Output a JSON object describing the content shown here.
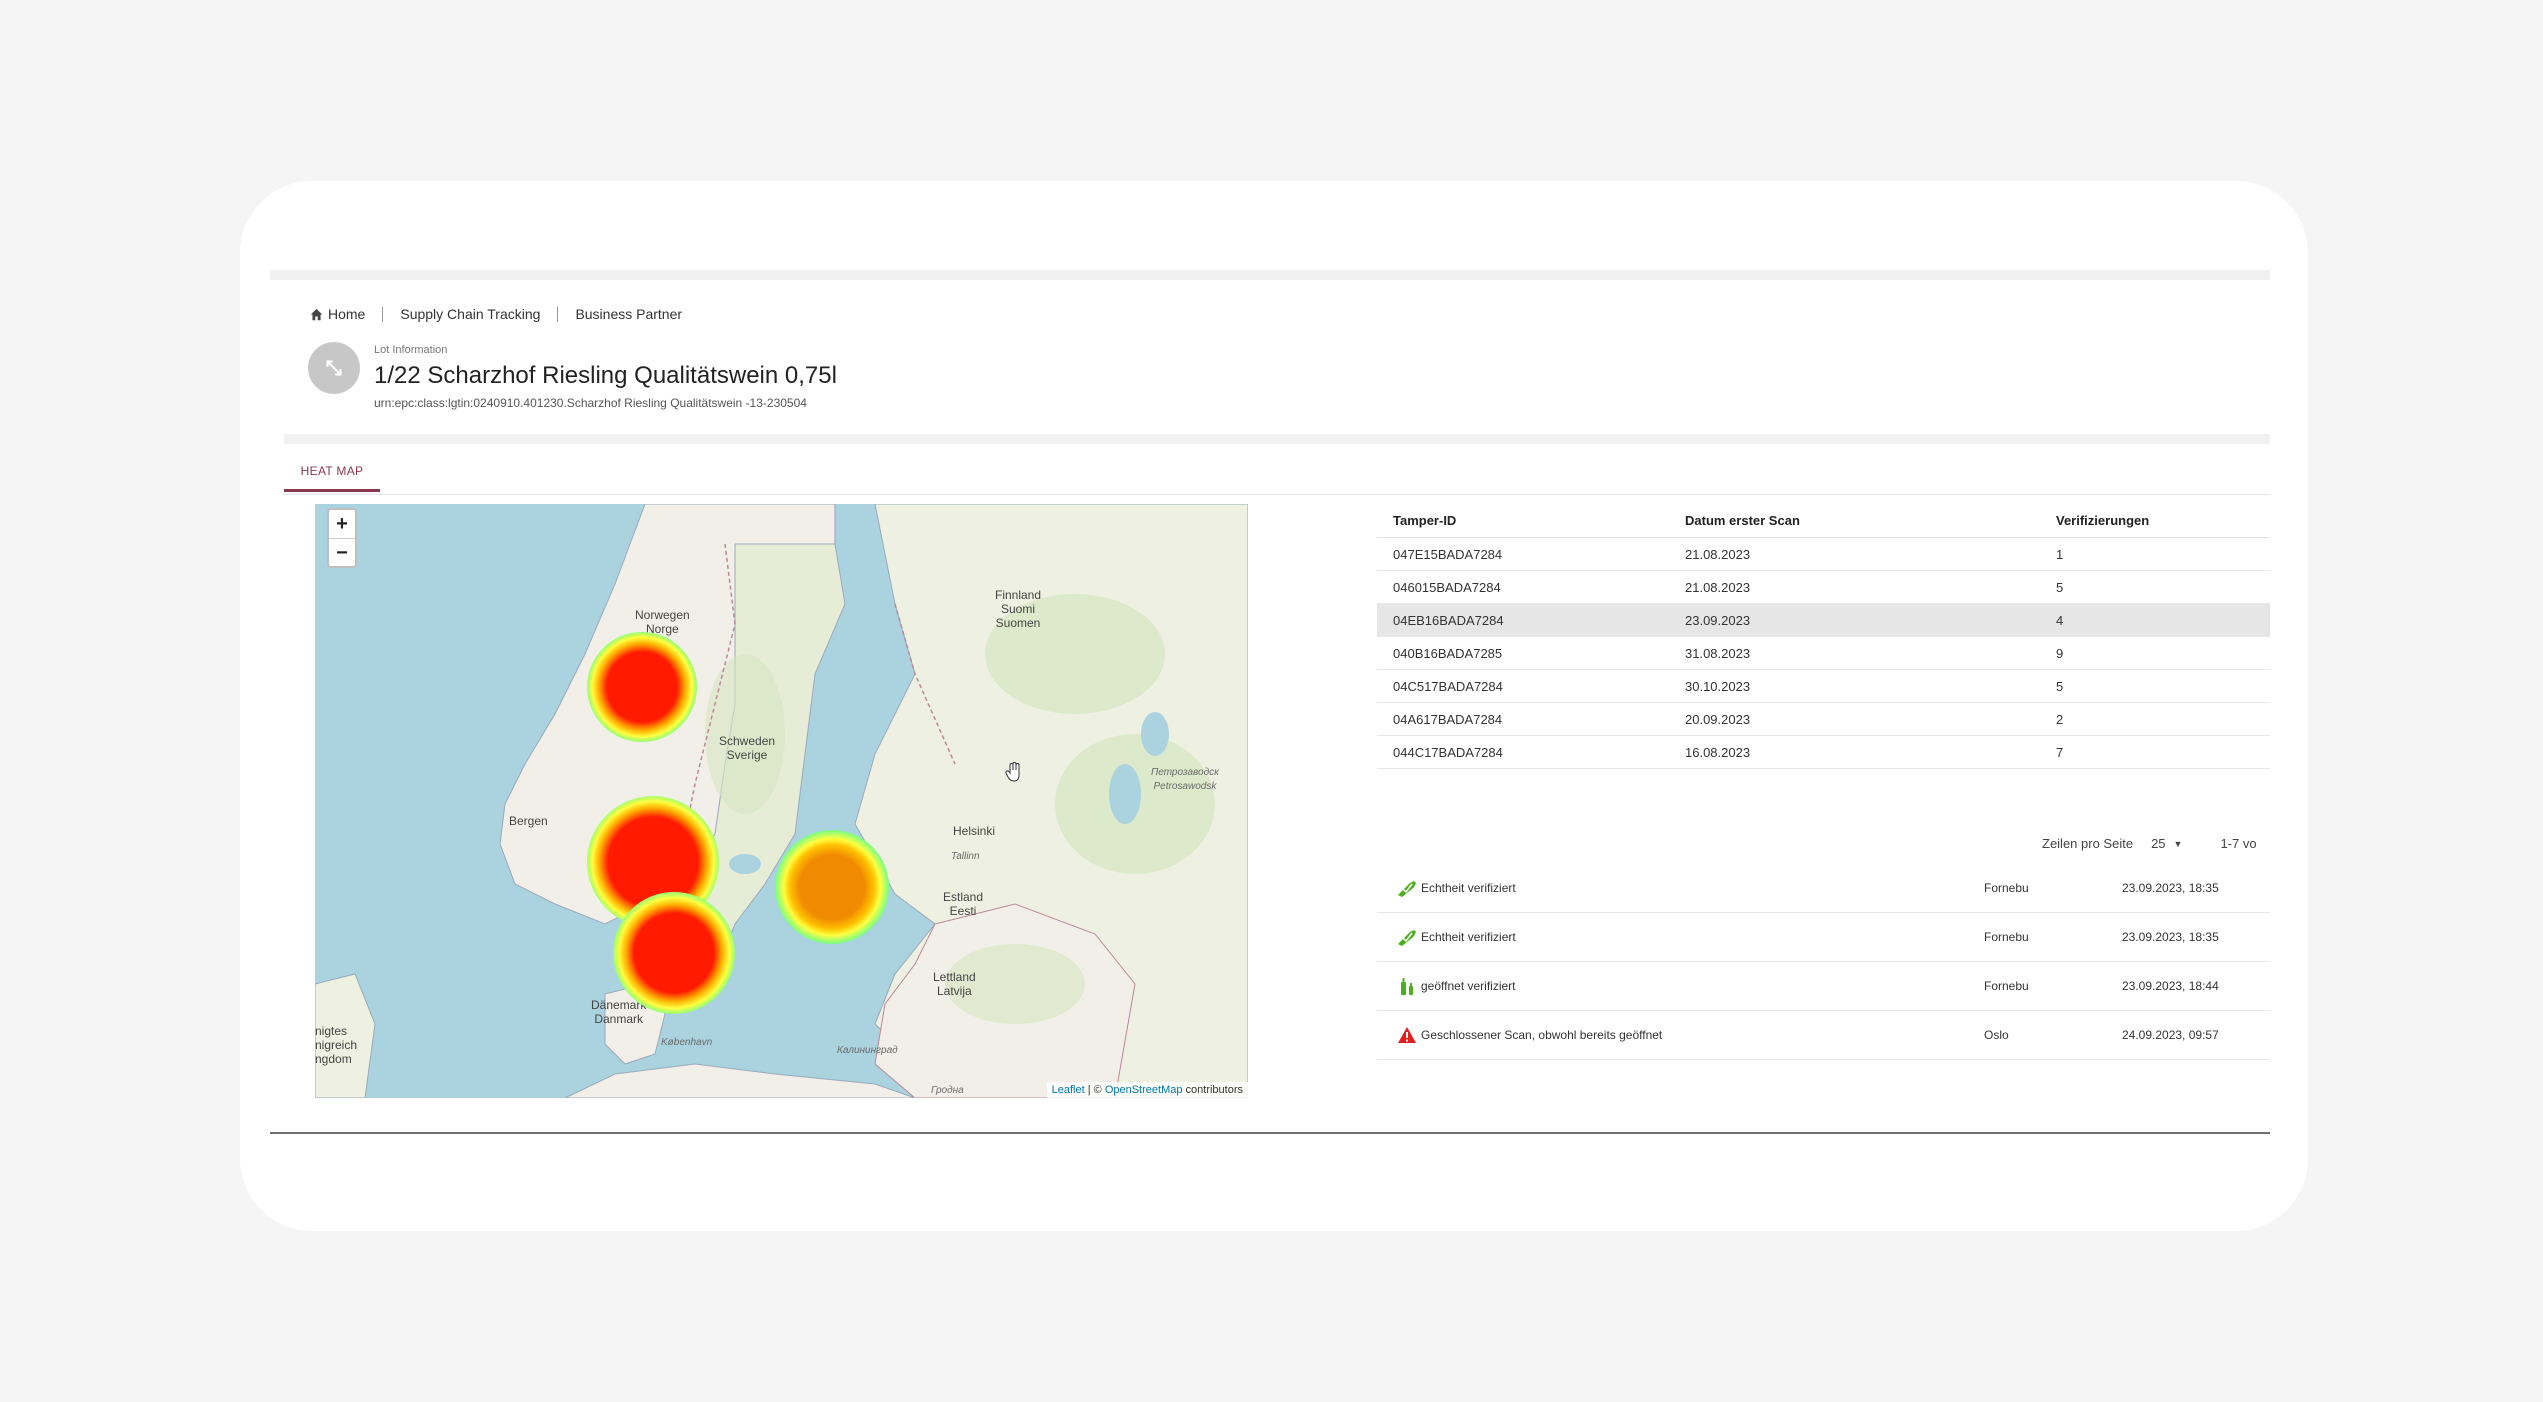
{
  "breadcrumb": [
    {
      "label": "Home"
    },
    {
      "label": "Supply Chain Tracking"
    },
    {
      "label": "Business Partner"
    }
  ],
  "lot": {
    "label": "Lot Information",
    "title": "1/22 Scharzhof Riesling Qualitätswein 0,75l",
    "urn": "urn:epc:class:lgtin:0240910.401230.Scharzhof Riesling Qualitätswein -13-230504"
  },
  "tabs": [
    {
      "label": "HEAT MAP",
      "active": true
    }
  ],
  "map": {
    "zoom_in": "+",
    "zoom_out": "−",
    "attribution_leaflet": "Leaflet",
    "attribution_sep": " | © ",
    "attribution_osm": "OpenStreetMap",
    "attribution_tail": " contributors",
    "labels": {
      "norway": "Norwegen\nNorge",
      "sweden": "Schweden\nSverige",
      "finland": "Finnland\nSuomi\nSuomen",
      "bergen": "Bergen",
      "helsinki": "Helsinki",
      "estonia": "Estland\nEesti",
      "latvia": "Lettland\nLatvija",
      "denmark": "Dänemark\nDanmark",
      "copenhagen": "København",
      "kaliningrad": "Калининград",
      "grodno": "Гродна",
      "petrozavodsk": "Петрозаводск\nPetrosawodsk",
      "kingdom": "nigtes\nnigreich\nngdom",
      "tallinn": "Tallinn"
    },
    "heat_colors": {
      "hot": "#ff1a00",
      "warm": "#f08a00"
    }
  },
  "table": {
    "headers": [
      "Tamper-ID",
      "Datum erster Scan",
      "Verifizierungen"
    ],
    "rows": [
      {
        "id": "047E15BADA7284",
        "date": "21.08.2023",
        "count": "1",
        "selected": false
      },
      {
        "id": "046015BADA7284",
        "date": "21.08.2023",
        "count": "5",
        "selected": false
      },
      {
        "id": "04EB16BADA7284",
        "date": "23.09.2023",
        "count": "4",
        "selected": true
      },
      {
        "id": "040B16BADA7285",
        "date": "31.08.2023",
        "count": "9",
        "selected": false
      },
      {
        "id": "04C517BADA7284",
        "date": "30.10.2023",
        "count": "5",
        "selected": false
      },
      {
        "id": "04A617BADA7284",
        "date": "20.09.2023",
        "count": "2",
        "selected": false
      },
      {
        "id": "044C17BADA7284",
        "date": "16.08.2023",
        "count": "7",
        "selected": false
      }
    ]
  },
  "pagination": {
    "rows_label": "Zeilen pro Seite",
    "rows_value": "25",
    "range": "1-7 vo"
  },
  "events": [
    {
      "icon": "verified-bottle-icon",
      "label": "Echtheit verifiziert",
      "location": "Fornebu",
      "time": "23.09.2023, 18:35"
    },
    {
      "icon": "verified-bottle-icon",
      "label": "Echtheit verifiziert",
      "location": "Fornebu",
      "time": "23.09.2023, 18:35"
    },
    {
      "icon": "opened-bottle-icon",
      "label": "geöffnet verifiziert",
      "location": "Fornebu",
      "time": "23.09.2023, 18:44"
    },
    {
      "icon": "warning-icon",
      "label": "Geschlossener Scan, obwohl bereits geöffnet",
      "location": "Oslo",
      "time": "24.09.2023, 09:57"
    }
  ],
  "colors": {
    "accent": "#8a3a4d",
    "selected_row": "#e6e6e6",
    "verified": "#4caf1e",
    "warning": "#e02020"
  }
}
